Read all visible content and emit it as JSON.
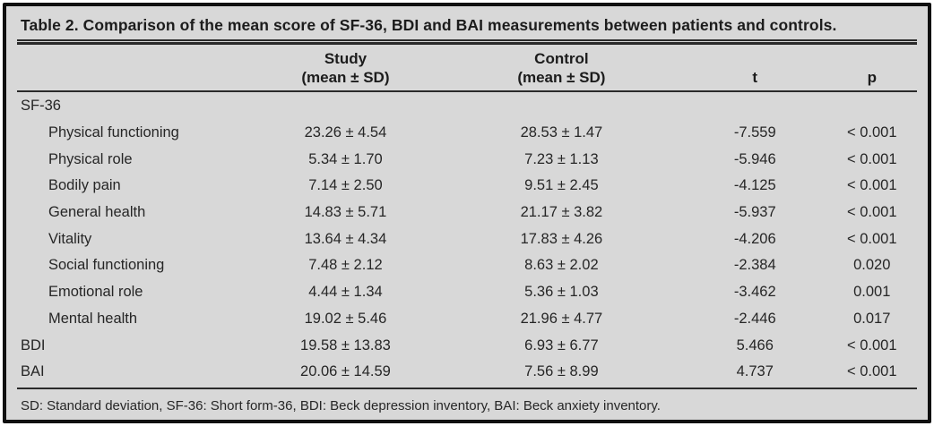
{
  "colors": {
    "background": "#d8d8d8",
    "border": "#101010",
    "rule": "#2a2a2a",
    "text": "#262626"
  },
  "table": {
    "title": "Table 2. Comparison of the mean score of SF-36, BDI and BAI measurements between patients and controls.",
    "header": {
      "study_line1": "Study",
      "study_line2": "(mean ± SD)",
      "control_line1": "Control",
      "control_line2": "(mean ± SD)",
      "t": "t",
      "p": "p"
    },
    "rows": [
      {
        "label": "SF-36",
        "indent": false,
        "study": "",
        "control": "",
        "t": "",
        "p": ""
      },
      {
        "label": "Physical functioning",
        "indent": true,
        "study": "23.26 ± 4.54",
        "control": "28.53 ± 1.47",
        "t": "-7.559",
        "p": "< 0.001"
      },
      {
        "label": "Physical role",
        "indent": true,
        "study": "5.34 ± 1.70",
        "control": "7.23 ± 1.13",
        "t": "-5.946",
        "p": "< 0.001"
      },
      {
        "label": "Bodily pain",
        "indent": true,
        "study": "7.14 ± 2.50",
        "control": "9.51 ± 2.45",
        "t": "-4.125",
        "p": "< 0.001"
      },
      {
        "label": "General health",
        "indent": true,
        "study": "14.83 ± 5.71",
        "control": "21.17 ± 3.82",
        "t": "-5.937",
        "p": "< 0.001"
      },
      {
        "label": "Vitality",
        "indent": true,
        "study": "13.64 ± 4.34",
        "control": "17.83 ± 4.26",
        "t": "-4.206",
        "p": "< 0.001"
      },
      {
        "label": "Social functioning",
        "indent": true,
        "study": "7.48 ± 2.12",
        "control": "8.63 ± 2.02",
        "t": "-2.384",
        "p": "0.020"
      },
      {
        "label": "Emotional role",
        "indent": true,
        "study": "4.44 ± 1.34",
        "control": "5.36 ± 1.03",
        "t": "-3.462",
        "p": "0.001"
      },
      {
        "label": "Mental health",
        "indent": true,
        "study": "19.02 ± 5.46",
        "control": "21.96 ± 4.77",
        "t": "-2.446",
        "p": "0.017"
      },
      {
        "label": "BDI",
        "indent": false,
        "study": "19.58 ± 13.83",
        "control": "6.93 ± 6.77",
        "t": "5.466",
        "p": "< 0.001"
      },
      {
        "label": "BAI",
        "indent": false,
        "study": "20.06 ± 14.59",
        "control": "7.56 ± 8.99",
        "t": "4.737",
        "p": "< 0.001"
      }
    ],
    "footnote": "SD: Standard deviation, SF-36: Short form-36, BDI: Beck depression inventory, BAI: Beck anxiety inventory."
  }
}
